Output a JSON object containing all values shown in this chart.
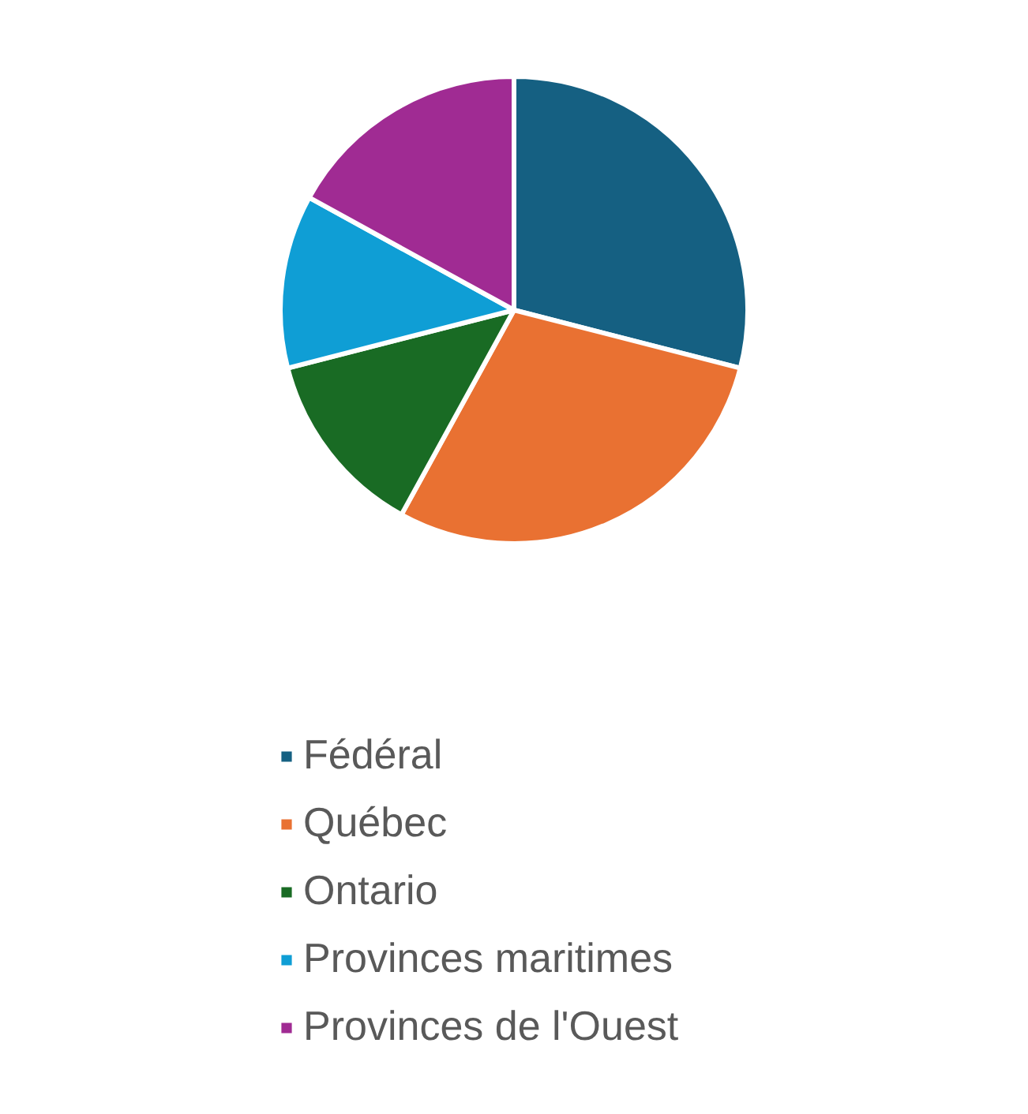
{
  "chart_data": {
    "type": "pie",
    "categories": [
      "Fédéral",
      "Québec",
      "Ontario",
      "Provinces maritimes",
      "Provinces de l'Ouest"
    ],
    "values": [
      29,
      29,
      13,
      12,
      17
    ],
    "colors": [
      "#156082",
      "#e97132",
      "#196b24",
      "#0f9ed5",
      "#a02b93"
    ],
    "legend": "bottom"
  }
}
